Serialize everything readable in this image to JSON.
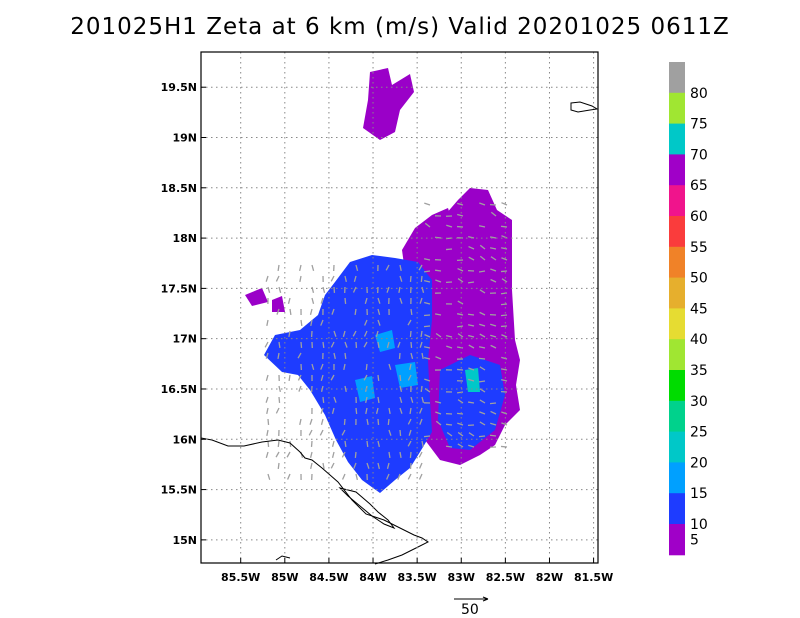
{
  "title": "201025H1 Zeta at 6 km (m/s) Valid 20201025 0611Z",
  "map": {
    "lon_range": [
      -85.95,
      -81.45
    ],
    "lat_range": [
      14.77,
      19.85
    ],
    "lon_ticks": [
      "85.5W",
      "85W",
      "84.5W",
      "84W",
      "83.5W",
      "83W",
      "82.5W",
      "82W",
      "81.5W"
    ],
    "lon_tick_values": [
      -85.5,
      -85.0,
      -84.5,
      -84.0,
      -83.5,
      -83.0,
      -82.5,
      -82.0,
      -81.5
    ],
    "lat_ticks": [
      "19.5N",
      "19N",
      "18.5N",
      "18N",
      "17.5N",
      "17N",
      "16.5N",
      "16N",
      "15.5N",
      "15N"
    ],
    "lat_tick_values": [
      19.5,
      19.0,
      18.5,
      18.0,
      17.5,
      17.0,
      16.5,
      16.0,
      15.5,
      15.0
    ],
    "gridlines": true,
    "coastline_color": "#000000",
    "vector_color": "#a0a0a0"
  },
  "colorbar": {
    "labels": [
      "80",
      "75",
      "70",
      "65",
      "60",
      "55",
      "50",
      "45",
      "40",
      "35",
      "30",
      "25",
      "20",
      "15",
      "10",
      "5"
    ],
    "colors": [
      "#a0a0a0",
      "#a0e632",
      "#00c8c8",
      "#a000c8",
      "#f0148c",
      "#fa3c3c",
      "#f08228",
      "#e6af2d",
      "#e6dc32",
      "#a0e632",
      "#00dc00",
      "#00d28c",
      "#00c8c8",
      "#00a0ff",
      "#1e3cff",
      "#a000c8"
    ]
  },
  "vector_key": {
    "label": "50"
  },
  "wind_field": {
    "legend_colors": {
      "low": "#a000c8",
      "mid": "#1e3cff",
      "high": "#00a0ff",
      "peak": "#00c8c8"
    }
  }
}
